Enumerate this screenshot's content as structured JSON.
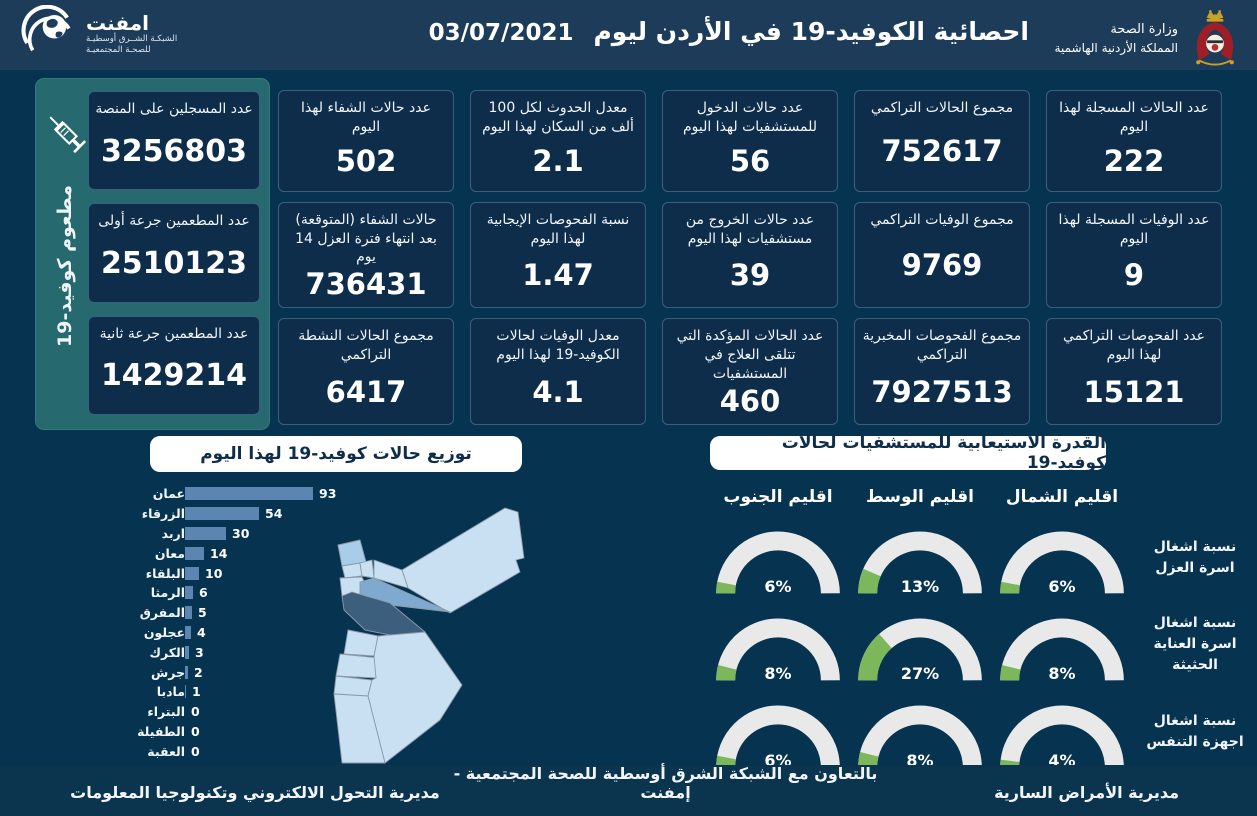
{
  "header": {
    "title": "احصائية الكوفيد-19 في الأردن ليوم",
    "date": "03/07/2021",
    "ministry_line1": "وزارة الصحة",
    "ministry_line2": "المملكة الأردنية الهاشمية",
    "logo": {
      "name": "امفنت",
      "sub_line1": "الشبكـة الشــرق أوسطيـة",
      "sub_line2": "للصحـة المجتمعيـة"
    }
  },
  "vaccination_panel": {
    "side_label": "مطعوم كوفيد-19",
    "cards": [
      {
        "label": "عدد المسجلين على المنصة",
        "value": "3256803"
      },
      {
        "label": "عدد المطعمين جرعة أولى",
        "value": "2510123"
      },
      {
        "label": "عدد المطعمين جرعة ثانية",
        "value": "1429214"
      }
    ]
  },
  "stat_cards": [
    {
      "label": "عدد الحالات المسجلة لهذا اليوم",
      "value": "222"
    },
    {
      "label": "مجموع الحالات التراكمي",
      "value": "752617"
    },
    {
      "label": "عدد حالات الدخول للمستشفيات لهذا اليوم",
      "value": "56"
    },
    {
      "label": "معدل الحدوث لكل 100 ألف من السكان لهذا اليوم",
      "value": "2.1"
    },
    {
      "label": "عدد حالات الشفاء لهذا اليوم",
      "value": "502"
    },
    {
      "label": "عدد الوفيات المسجلة لهذا اليوم",
      "value": "9"
    },
    {
      "label": "مجموع الوفيات التراكمي",
      "value": "9769"
    },
    {
      "label": "عدد حالات الخروج من مستشفيات لهذا اليوم",
      "value": "39"
    },
    {
      "label": "نسبة الفحوصات الإيجابية لهذا اليوم",
      "value": "1.47"
    },
    {
      "label": "حالات الشفاء (المتوقعة) بعد انتهاء فترة العزل 14 يوم",
      "value": "736431"
    },
    {
      "label": "عدد الفحوصات التراكمي لهذا اليوم",
      "value": "15121"
    },
    {
      "label": "مجموع الفحوصات المخبرية التراكمي",
      "value": "7927513"
    },
    {
      "label": "عدد الحالات المؤكدة التي تتلقى العلاج في المستشفيات",
      "value": "460"
    },
    {
      "label": "معدل الوفيات لحالات الكوفيد-19 لهذا اليوم",
      "value": "4.1"
    },
    {
      "label": "مجموع الحالات النشطة التراكمي",
      "value": "6417"
    }
  ],
  "chart_data": [
    {
      "type": "bar",
      "title": "توزيع حالات كوفيد-19 لهذا اليوم",
      "orientation": "horizontal",
      "categories": [
        "عمان",
        "الزرقاء",
        "اربد",
        "معان",
        "البلقاء",
        "الرمثا",
        "المفرق",
        "عجلون",
        "الكرك",
        "جرش",
        "مادبا",
        "البتراء",
        "الطفيلة",
        "العقبة"
      ],
      "values": [
        93,
        54,
        30,
        14,
        10,
        6,
        5,
        4,
        3,
        2,
        1,
        0,
        0,
        0
      ],
      "xlim": [
        0,
        93
      ],
      "bar_color": "#5d85b2",
      "value_labels": true,
      "legend": false,
      "grid": false
    },
    {
      "type": "gauge",
      "title": "القدرة الاستيعابية للمستشفيات لحالات كوفيد-19",
      "regions": [
        "اقليم الشمال",
        "اقليم الوسط",
        "اقليم الجنوب"
      ],
      "rows": [
        {
          "label": "نسبة اشغال اسرة العزل",
          "values_pct": [
            6,
            13,
            6
          ]
        },
        {
          "label": "نسبة اشغال اسرة العناية الحثيثة",
          "values_pct": [
            8,
            27,
            8
          ]
        },
        {
          "label": "نسبة اشغال اجهزة التنفس",
          "values_pct": [
            4,
            8,
            6
          ]
        }
      ],
      "track_color": "#e9e9e9",
      "fill_color": "#7cb85b"
    }
  ],
  "map": {
    "title": "jordan-governorates-choropleth",
    "shading": {
      "عمان": "dark",
      "الزرقاء": "medium",
      "اربد": "light-medium",
      "others": "light"
    },
    "colors": {
      "light": "#c9dff2",
      "light-medium": "#a9cce9",
      "medium": "#7fa9cf",
      "dark": "#3d5f7e"
    }
  },
  "footer": {
    "right": "مديرية الأمراض السارية",
    "center": "بالتعاون مع الشبكة الشرق أوسطية للصحة المجتمعية - إمفنت",
    "left": "مديرية التحول الالكتروني وتكنولوجيا المعلومات"
  },
  "colors": {
    "background": "#06334f",
    "header_bg": "#1c3c59",
    "card_bg": "#0d2d4b",
    "card_border": "#3a6080",
    "green_panel": "#26696e",
    "bar": "#5d85b2",
    "gauge_fill": "#7cb85b",
    "gauge_track": "#e9e9e9",
    "pill_bg": "#ffffff",
    "pill_text": "#0d2d4b"
  }
}
